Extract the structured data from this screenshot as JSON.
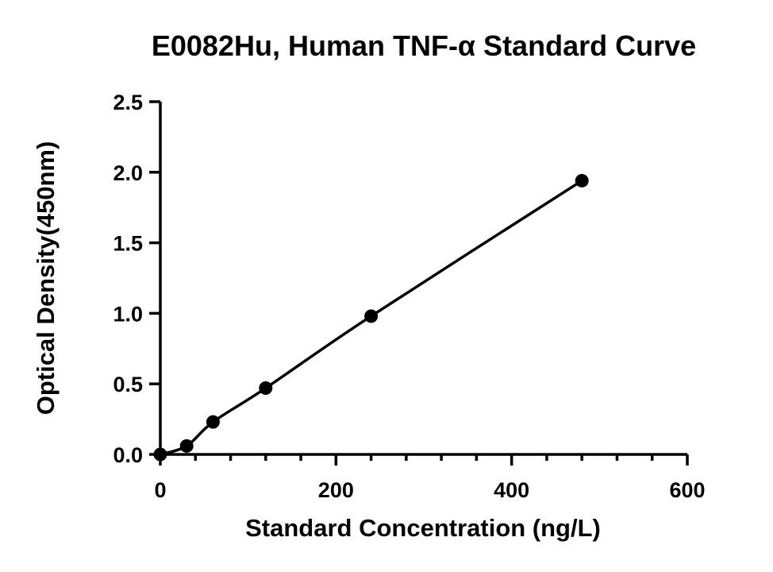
{
  "chart_data": {
    "type": "scatter",
    "title": "E0082Hu, Human TNF-α Standard Curve",
    "xlabel": "Standard Concentration (ng/L)",
    "ylabel": "Optical Density(450nm)",
    "xlim": [
      0,
      600
    ],
    "ylim": [
      0,
      2.5
    ],
    "xticks": [
      0,
      200,
      400,
      600
    ],
    "xtick_labels": [
      "0",
      "200",
      "400",
      "600"
    ],
    "x_minor_step": 40,
    "yticks": [
      0,
      0.5,
      1.0,
      1.5,
      2.0,
      2.5
    ],
    "ytick_labels": [
      "0.0",
      "0.5",
      "1.0",
      "1.5",
      "2.0",
      "2.5"
    ],
    "grid": false,
    "series": [
      {
        "x": [
          0,
          30,
          60,
          120,
          240,
          480
        ],
        "y": [
          0.0,
          0.06,
          0.23,
          0.47,
          0.98,
          1.94
        ],
        "fit_line": true
      }
    ]
  }
}
